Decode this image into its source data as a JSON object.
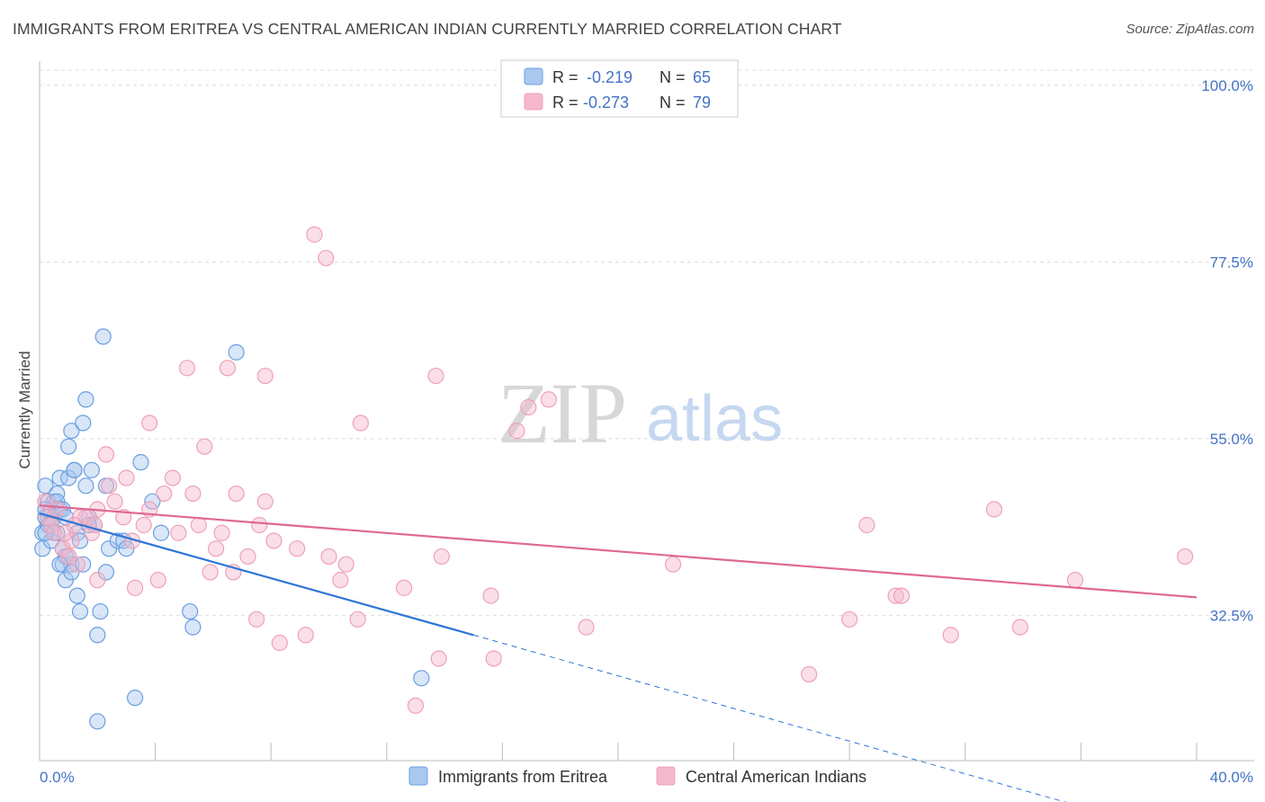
{
  "title": "IMMIGRANTS FROM ERITREA VS CENTRAL AMERICAN INDIAN CURRENTLY MARRIED CORRELATION CHART",
  "source": "Source: ZipAtlas.com",
  "watermark": {
    "zip": "ZIP",
    "atlas": "atlas"
  },
  "legend_top": [
    {
      "r_label": "R = ",
      "r_value": "-0.219",
      "n_label": "N = ",
      "n_value": "65",
      "color": "#a9c8f0"
    },
    {
      "r_label": "R = ",
      "r_value": "-0.273",
      "n_label": "N = ",
      "n_value": "79",
      "color": "#f5b8cb"
    }
  ],
  "chart_data": {
    "type": "scatter",
    "title": "IMMIGRANTS FROM ERITREA VS CENTRAL AMERICAN INDIAN CURRENTLY MARRIED CORRELATION CHART",
    "ylabel": "Currently Married",
    "xlabel": "",
    "xlim": [
      0,
      40
    ],
    "ylim": [
      14,
      104
    ],
    "x_tick_labels": [
      "0.0%",
      "40.0%"
    ],
    "y_ticks": [
      32.5,
      55.0,
      77.5,
      100.0
    ],
    "y_tick_labels": [
      "32.5%",
      "55.0%",
      "77.5%",
      "100.0%"
    ],
    "grid": true,
    "legend_position": "top-center and bottom",
    "series": [
      {
        "name": "Immigrants from Eritrea",
        "color": "#6a9fe0",
        "trend": {
          "x0": 0,
          "y0": 45.5,
          "x1": 15,
          "y1": 30.0,
          "dashed_to_x": 40,
          "dashed_to_y": 4.0,
          "color": "#2e75d6"
        },
        "points": [
          [
            0.1,
            41
          ],
          [
            0.1,
            43
          ],
          [
            0.2,
            45
          ],
          [
            0.2,
            49
          ],
          [
            0.3,
            47
          ],
          [
            0.3,
            44
          ],
          [
            0.4,
            42
          ],
          [
            0.4,
            46
          ],
          [
            0.5,
            45
          ],
          [
            0.5,
            47
          ],
          [
            0.6,
            48
          ],
          [
            0.6,
            43
          ],
          [
            0.7,
            46
          ],
          [
            0.7,
            50
          ],
          [
            0.8,
            39
          ],
          [
            0.8,
            41
          ],
          [
            0.9,
            37
          ],
          [
            0.9,
            40
          ],
          [
            1.0,
            54
          ],
          [
            1.0,
            50
          ],
          [
            1.1,
            39
          ],
          [
            1.1,
            38
          ],
          [
            1.1,
            56
          ],
          [
            1.2,
            51
          ],
          [
            1.3,
            43
          ],
          [
            1.3,
            35
          ],
          [
            1.4,
            33
          ],
          [
            1.5,
            39
          ],
          [
            1.5,
            57
          ],
          [
            1.6,
            49
          ],
          [
            1.6,
            60
          ],
          [
            1.7,
            45
          ],
          [
            1.8,
            51
          ],
          [
            1.9,
            44
          ],
          [
            2.0,
            30
          ],
          [
            2.0,
            19
          ],
          [
            2.1,
            33
          ],
          [
            2.2,
            68
          ],
          [
            2.3,
            49
          ],
          [
            2.3,
            38
          ],
          [
            2.4,
            41
          ],
          [
            2.7,
            42
          ],
          [
            2.9,
            42
          ],
          [
            3.0,
            41
          ],
          [
            3.3,
            22
          ],
          [
            3.5,
            52
          ],
          [
            3.9,
            47
          ],
          [
            4.2,
            43
          ],
          [
            5.2,
            33
          ],
          [
            5.3,
            31
          ],
          [
            6.8,
            66
          ],
          [
            13.2,
            24.5
          ],
          [
            0.2,
            46
          ],
          [
            0.3,
            44
          ],
          [
            0.5,
            43
          ],
          [
            0.6,
            47
          ],
          [
            0.8,
            46
          ],
          [
            1.0,
            40
          ],
          [
            1.2,
            51
          ],
          [
            1.4,
            42
          ],
          [
            0.4,
            44
          ],
          [
            0.9,
            45
          ],
          [
            1.7,
            44
          ],
          [
            0.2,
            43
          ],
          [
            0.7,
            39
          ]
        ]
      },
      {
        "name": "Central American Indians",
        "color": "#f0a0b8",
        "trend": {
          "x0": 0,
          "y0": 46.5,
          "x1": 40,
          "y1": 34.8,
          "color": "#e06890"
        },
        "points": [
          [
            0.2,
            47
          ],
          [
            0.3,
            45
          ],
          [
            0.4,
            44
          ],
          [
            0.5,
            43
          ],
          [
            0.6,
            46
          ],
          [
            0.8,
            41
          ],
          [
            1.0,
            40
          ],
          [
            1.1,
            42
          ],
          [
            1.3,
            39
          ],
          [
            1.4,
            45
          ],
          [
            1.6,
            45
          ],
          [
            1.8,
            43
          ],
          [
            1.9,
            44
          ],
          [
            2.0,
            37
          ],
          [
            2.3,
            53
          ],
          [
            2.4,
            49
          ],
          [
            2.6,
            47
          ],
          [
            2.9,
            45
          ],
          [
            3.0,
            50
          ],
          [
            3.2,
            42
          ],
          [
            3.3,
            36
          ],
          [
            3.6,
            44
          ],
          [
            3.8,
            46
          ],
          [
            3.8,
            57
          ],
          [
            4.1,
            37
          ],
          [
            4.3,
            48
          ],
          [
            4.6,
            50
          ],
          [
            4.8,
            43
          ],
          [
            5.1,
            64
          ],
          [
            5.3,
            48
          ],
          [
            5.5,
            44
          ],
          [
            5.7,
            54
          ],
          [
            5.9,
            38
          ],
          [
            6.1,
            41
          ],
          [
            6.3,
            43
          ],
          [
            6.5,
            64
          ],
          [
            6.7,
            38
          ],
          [
            6.8,
            48
          ],
          [
            7.2,
            40
          ],
          [
            7.5,
            32
          ],
          [
            7.6,
            44
          ],
          [
            7.8,
            47
          ],
          [
            7.8,
            63
          ],
          [
            8.1,
            42
          ],
          [
            8.3,
            29
          ],
          [
            8.9,
            41
          ],
          [
            9.2,
            30
          ],
          [
            9.5,
            81
          ],
          [
            9.9,
            78
          ],
          [
            10.0,
            40
          ],
          [
            10.4,
            37
          ],
          [
            10.6,
            39
          ],
          [
            11.0,
            32
          ],
          [
            11.1,
            57
          ],
          [
            12.6,
            36
          ],
          [
            13.0,
            21
          ],
          [
            13.7,
            63
          ],
          [
            13.8,
            27
          ],
          [
            13.9,
            40
          ],
          [
            15.6,
            35
          ],
          [
            15.7,
            27
          ],
          [
            16.5,
            56
          ],
          [
            16.9,
            59
          ],
          [
            17.6,
            60
          ],
          [
            18.9,
            31
          ],
          [
            21.9,
            39
          ],
          [
            26.6,
            25
          ],
          [
            28.0,
            32
          ],
          [
            28.6,
            44
          ],
          [
            29.6,
            35
          ],
          [
            29.8,
            35
          ],
          [
            31.5,
            30
          ],
          [
            33.0,
            46
          ],
          [
            33.9,
            31
          ],
          [
            35.8,
            37
          ],
          [
            39.6,
            40
          ],
          [
            1.2,
            44
          ],
          [
            2.0,
            46
          ],
          [
            0.9,
            43
          ]
        ]
      }
    ]
  }
}
